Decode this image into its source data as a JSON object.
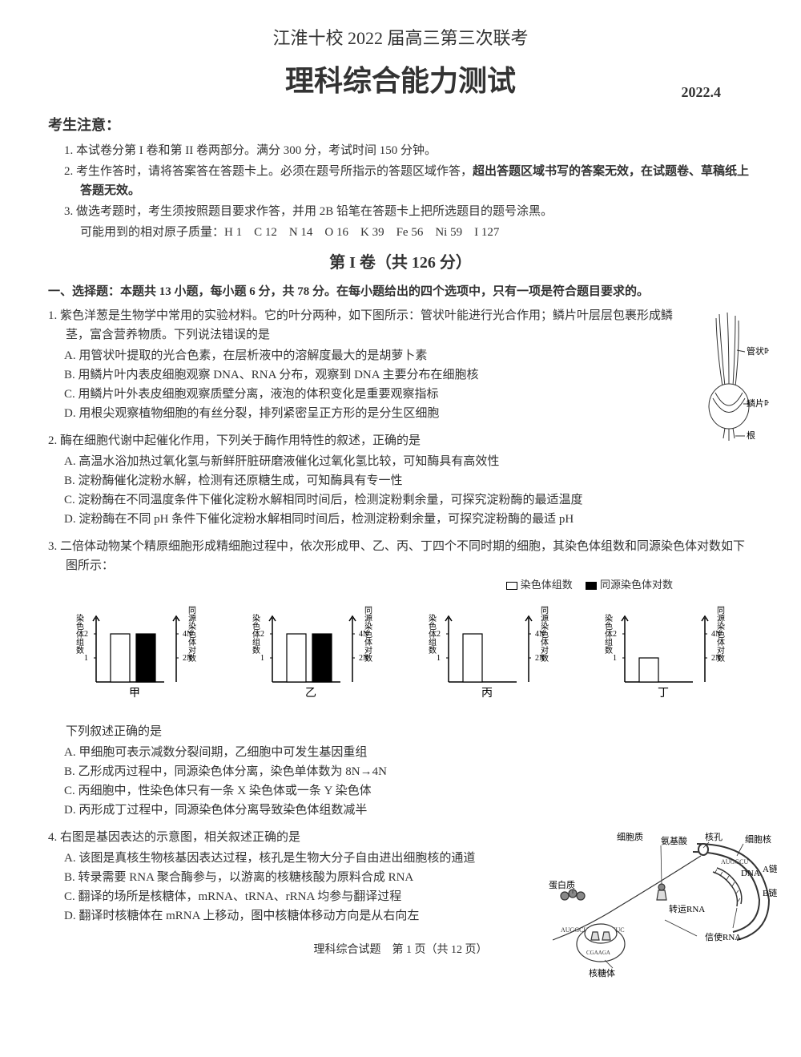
{
  "header": {
    "line1": "江淮十校 2022 届高三第三次联考",
    "line2": "理科综合能力测试",
    "date": "2022.4"
  },
  "notice": {
    "title": "考生注意：",
    "items": [
      {
        "num": "1.",
        "text": "本试卷分第 I 卷和第 II 卷两部分。满分 300 分，考试时间 150 分钟。"
      },
      {
        "num": "2.",
        "text": "考生作答时，请将答案答在答题卡上。必须在题号所指示的答题区域作答，",
        "bold": "超出答题区域书写的答案无效，在试题卷、草稿纸上答题无效。"
      },
      {
        "num": "3.",
        "text": "做选考题时，考生须按照题目要求作答，并用 2B 铅笔在答题卡上把所选题目的题号涂黑。"
      }
    ],
    "atomic": "可能用到的相对原子质量：H 1　C 12　N 14　O 16　K 39　Fe 56　Ni 59　I 127"
  },
  "section1": {
    "title": "第 I 卷（共 126 分）",
    "intro": "一、选择题：本题共 13 小题，每小题 6 分，共 78 分。在每小题给出的四个选项中，只有一项是符合题目要求的。"
  },
  "q1": {
    "stem": "1. 紫色洋葱是生物学中常用的实验材料。它的叶分两种，如下图所示：管状叶能进行光合作用；鳞片叶层层包裹形成鳞茎，富含营养物质。下列说法错误的是",
    "A": "A. 用管状叶提取的光合色素，在层析液中的溶解度最大的是胡萝卜素",
    "B": "B. 用鳞片叶内表皮细胞观察 DNA、RNA 分布，观察到 DNA 主要分布在细胞核",
    "C": "C. 用鳞片叶外表皮细胞观察质壁分离，液泡的体积变化是重要观察指标",
    "D": "D. 用根尖观察植物细胞的有丝分裂，排列紧密呈正方形的是分生区细胞"
  },
  "onion_labels": {
    "tube": "管状叶",
    "scale": "鳞片叶",
    "root": "根"
  },
  "q2": {
    "stem": "2. 酶在细胞代谢中起催化作用，下列关于酶作用特性的叙述，正确的是",
    "A": "A. 高温水浴加热过氧化氢与新鲜肝脏研磨液催化过氧化氢比较，可知酶具有高效性",
    "B": "B. 淀粉酶催化淀粉水解，检测有还原糖生成，可知酶具有专一性",
    "C": "C. 淀粉酶在不同温度条件下催化淀粉水解相同时间后，检测淀粉剩余量，可探究淀粉酶的最适温度",
    "D": "D. 淀粉酶在不同 pH 条件下催化淀粉水解相同时间后，检测淀粉剩余量，可探究淀粉酶的最适 pH"
  },
  "q3": {
    "stem": "3. 二倍体动物某个精原细胞形成精细胞过程中，依次形成甲、乙、丙、丁四个不同时期的细胞，其染色体组数和同源染色体对数如下图所示：",
    "legend": {
      "white": "染色体组数",
      "black": "同源染色体对数"
    },
    "charts": {
      "ylabel_left": "染色体组数",
      "ylabel_right": "同源染色体对数",
      "yticks_left": [
        1,
        2
      ],
      "yticks_right": [
        "2N",
        "4N"
      ],
      "panels": [
        {
          "name": "甲",
          "left_val": 2,
          "right_val": 2
        },
        {
          "name": "乙",
          "left_val": 2,
          "right_val": 2
        },
        {
          "name": "丙",
          "left_val": 2,
          "right_val": 0
        },
        {
          "name": "丁",
          "left_val": 1,
          "right_val": 0
        }
      ],
      "bar_colors": {
        "left": "#ffffff",
        "right": "#000000"
      },
      "axis_color": "#000000"
    },
    "after": "下列叙述正确的是",
    "A": "A. 甲细胞可表示减数分裂间期，乙细胞中可发生基因重组",
    "B": "B. 乙形成丙过程中，同源染色体分离，染色单体数为 8N→4N",
    "C": "C. 丙细胞中，性染色体只有一条 X 染色体或一条 Y 染色体",
    "D": "D. 丙形成丁过程中，同源染色体分离导致染色体组数减半"
  },
  "q4": {
    "stem": "4. 右图是基因表达的示意图，相关叙述正确的是",
    "A": "A. 该图是真核生物核基因表达过程，核孔是生物大分子自由进出细胞核的通道",
    "B": "B. 转录需要 RNA 聚合酶参与，以游离的核糖核酸为原料合成 RNA",
    "C": "C. 翻译的场所是核糖体，mRNA、tRNA、rRNA 均参与翻译过程",
    "D": "D. 翻译时核糖体在 mRNA 上移动，图中核糖体移动方向是从右向左"
  },
  "cell_labels": {
    "cytoplasm": "细胞质",
    "aminoacid": "氨基酸",
    "nucleopore": "核孔",
    "nucleus": "细胞核",
    "dna": "DNA",
    "achain": "A链",
    "bchain": "B链",
    "protein": "蛋白质",
    "trna": "转运RNA",
    "mrna": "信使RNA",
    "ribosome": "核糖体"
  },
  "footer": "理科综合试题　第 1 页（共 12 页）"
}
